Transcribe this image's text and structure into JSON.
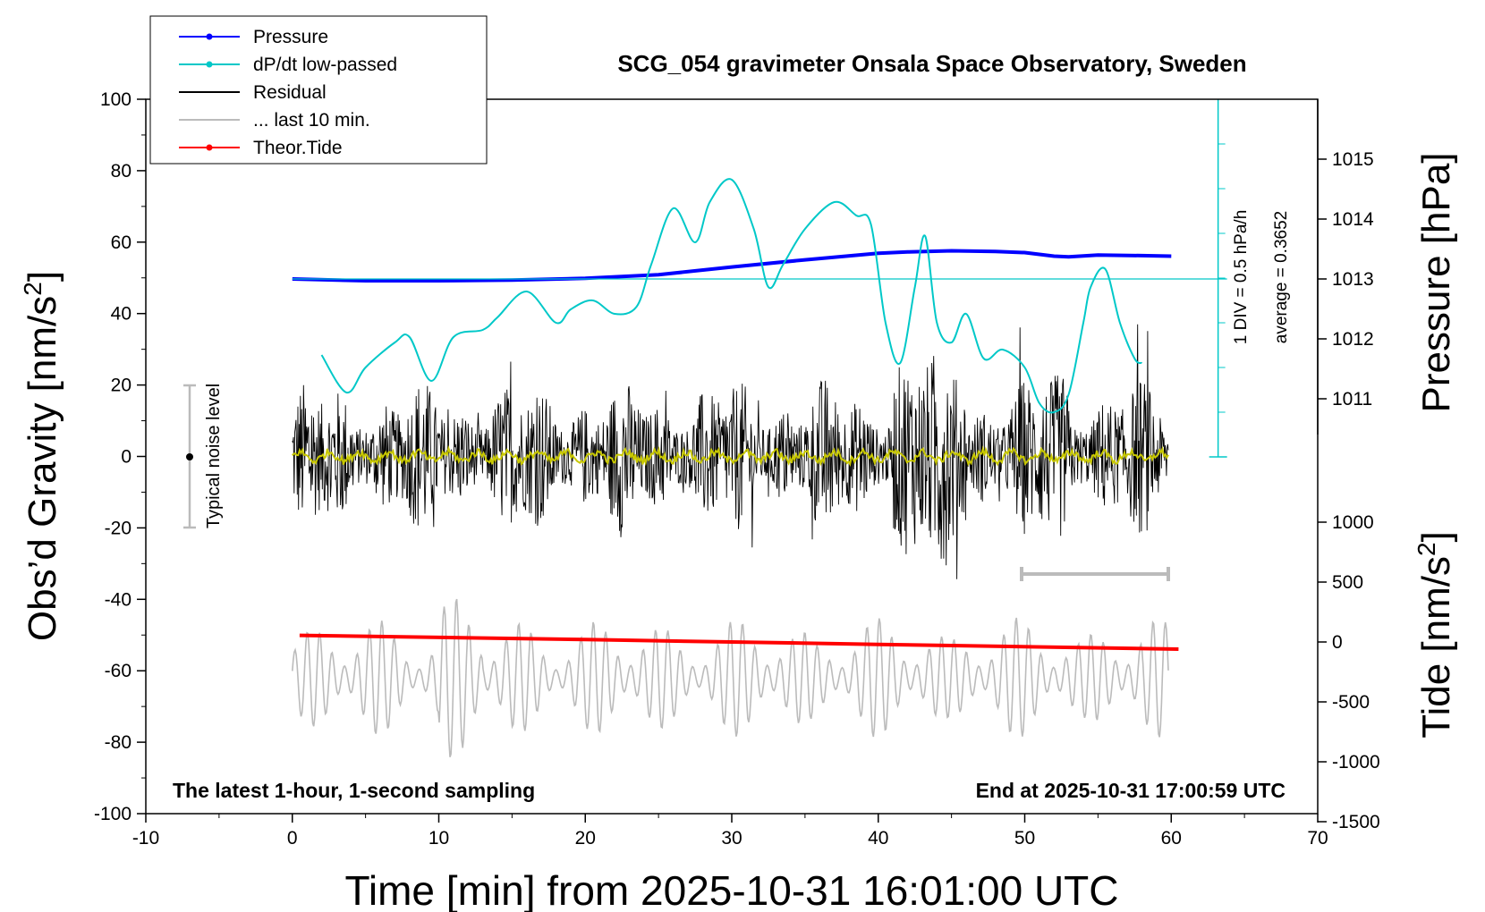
{
  "chart_data": {
    "type": "line",
    "title": "SCG_054 gravimeter Onsala Space Observatory, Sweden",
    "xlabel": "Time [min] from 2025-10-31 16:01:00 UTC",
    "ylabel_left": "Obs’d Gravity [nm/s",
    "ylabel_left_sup": "2",
    "ylabel_left_end": "]",
    "ylabel_right_top": "Pressure [hPa]",
    "ylabel_right_bottom": "Tide [nm/s",
    "ylabel_right_bottom_sup": "2",
    "ylabel_right_bottom_end": "]",
    "xlim": [
      -10,
      70
    ],
    "ylim_left": [
      -100,
      100
    ],
    "ylim_pressure": [
      1011,
      1015
    ],
    "ylim_tide": [
      -1500,
      1000
    ],
    "x_ticks": [
      "-10",
      "0",
      "10",
      "20",
      "30",
      "40",
      "50",
      "60",
      "70"
    ],
    "y_ticks_left": [
      "-100",
      "-80",
      "-60",
      "-40",
      "-20",
      "0",
      "20",
      "40",
      "60",
      "80",
      "100"
    ],
    "y_ticks_pressure": [
      "1011",
      "1012",
      "1013",
      "1014",
      "1015"
    ],
    "y_ticks_tide": [
      "-1500",
      "-1000",
      "-500",
      "0",
      "500",
      "1000"
    ],
    "legend": {
      "placement": "top-left",
      "entries": [
        {
          "label": "Pressure",
          "color": "#0000ff",
          "marker": true
        },
        {
          "label": "dP/dt low-passed",
          "color": "#00c8c8",
          "marker": true
        },
        {
          "label": "Residual",
          "color": "#000000",
          "marker": false
        },
        {
          "label": "... last 10 min.",
          "color": "#bbbbbb",
          "marker": false
        },
        {
          "label": "Theor.Tide",
          "color": "#ff0000",
          "marker": true
        }
      ]
    },
    "annotations": {
      "noise_label": "Typical noise level",
      "div_label": "1 DIV = 0.5 hPa/h",
      "avg_label": "average = 0.3652",
      "bottom_left": "The latest 1-hour, 1-second sampling",
      "bottom_right": "End at 2025-10-31 17:00:59 UTC"
    },
    "series": [
      {
        "name": "Pressure",
        "axis": "pressure",
        "color": "#0000ff",
        "x": [
          0,
          5,
          10,
          15,
          20,
          25,
          30,
          35,
          40,
          42,
          45,
          48,
          50,
          52,
          53,
          55,
          58,
          60
        ],
        "values": [
          1013.0,
          1012.97,
          1012.97,
          1012.98,
          1013.01,
          1013.07,
          1013.2,
          1013.32,
          1013.43,
          1013.45,
          1013.47,
          1013.46,
          1013.44,
          1013.38,
          1013.37,
          1013.4,
          1013.39,
          1013.38
        ]
      },
      {
        "name": "dP/dt low-passed",
        "axis": "dpdt",
        "color": "#00c8c8",
        "x": [
          2,
          3.7,
          5,
          7,
          8,
          9.5,
          11,
          13,
          14,
          16,
          18,
          19,
          20.5,
          22,
          23.5,
          24.5,
          26,
          27.5,
          28.5,
          30,
          31.5,
          32.5,
          33.5,
          35,
          37,
          38.5,
          39.5,
          40.5,
          41.5,
          42.5,
          43.2,
          44,
          45,
          46,
          47.2,
          48.5,
          50,
          51,
          52,
          53,
          54,
          54.5,
          55.5,
          56.5,
          57.5,
          58
        ],
        "values": [
          1.14,
          0.72,
          1.0,
          1.28,
          1.34,
          0.85,
          1.34,
          1.42,
          1.56,
          1.85,
          1.5,
          1.65,
          1.75,
          1.6,
          1.68,
          2.15,
          2.78,
          2.4,
          2.85,
          3.1,
          2.55,
          1.9,
          2.15,
          2.55,
          2.85,
          2.7,
          2.6,
          1.5,
          1.05,
          1.9,
          2.47,
          1.5,
          1.28,
          1.6,
          1.1,
          1.2,
          1.0,
          0.6,
          0.5,
          0.7,
          1.5,
          1.9,
          2.1,
          1.5,
          1.1,
          1.05
        ]
      },
      {
        "name": "Theor.Tide",
        "axis": "tide",
        "color": "#ff0000",
        "x": [
          0.5,
          20,
          40,
          60.5
        ],
        "values": [
          55,
          20,
          -20,
          -60
        ]
      }
    ]
  }
}
